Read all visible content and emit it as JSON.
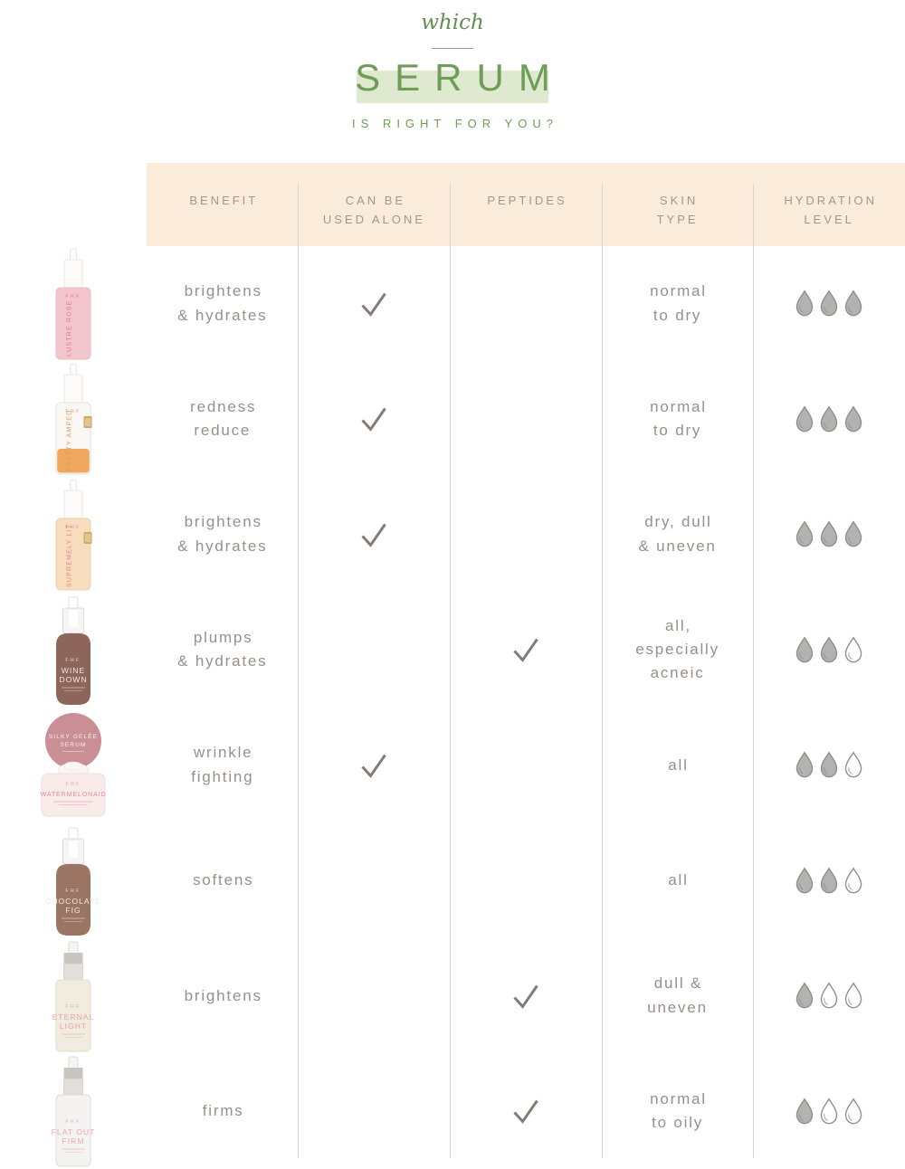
{
  "title": {
    "eyebrow": "which",
    "main": "SERUM",
    "subtitle": "IS RIGHT FOR YOU?"
  },
  "palette": {
    "green": "#6f9d58",
    "green_dark": "#60904e",
    "band_green": "#dfe9cf",
    "header_bg": "#fbebdb",
    "header_text": "#a1968f",
    "body_text": "#9a8f88",
    "check": "#857b76",
    "drop_fill": "#b4b2b1",
    "drop_stroke": "#8f8d8c",
    "divider": "#d9d4d1"
  },
  "columns": [
    "BENEFIT",
    "CAN BE\nUSED ALONE",
    "PEPTIDES",
    "SKIN\nTYPE",
    "HYDRATION\nLEVEL"
  ],
  "hydration_max": 3,
  "chart_data": {
    "type": "table",
    "title": "which SERUM is right for you?",
    "columns": [
      "BENEFIT",
      "CAN BE USED ALONE",
      "PEPTIDES",
      "SKIN TYPE",
      "HYDRATION LEVEL (of 3)"
    ],
    "rows": [
      {
        "product": "LUSTRE ROSE",
        "benefit": "brightens & hydrates",
        "can_be_used_alone": true,
        "peptides": false,
        "skin_type": "normal to dry",
        "hydration_level": 3
      },
      {
        "product": "PRETTY AMPED",
        "benefit": "redness reduce",
        "can_be_used_alone": true,
        "peptides": false,
        "skin_type": "normal to dry",
        "hydration_level": 3
      },
      {
        "product": "SUPREMELY LIT",
        "benefit": "brightens & hydrates",
        "can_be_used_alone": true,
        "peptides": false,
        "skin_type": "dry, dull & uneven",
        "hydration_level": 3
      },
      {
        "product": "WINE DOWN",
        "benefit": "plumps & hydrates",
        "can_be_used_alone": false,
        "peptides": true,
        "skin_type": "all, especially acneic",
        "hydration_level": 2
      },
      {
        "product": "WATERMELONAID",
        "benefit": "wrinkle fighting",
        "can_be_used_alone": true,
        "peptides": false,
        "skin_type": "all",
        "hydration_level": 2
      },
      {
        "product": "CHOCOLATE FIG",
        "benefit": "softens",
        "can_be_used_alone": false,
        "peptides": false,
        "skin_type": "all",
        "hydration_level": 2
      },
      {
        "product": "ETERNAL LIGHT",
        "benefit": "brightens",
        "can_be_used_alone": false,
        "peptides": true,
        "skin_type": "dull & uneven",
        "hydration_level": 1
      },
      {
        "product": "FLAT OUT FIRM",
        "benefit": "firms",
        "can_be_used_alone": false,
        "peptides": true,
        "skin_type": "normal to oily",
        "hydration_level": 1
      }
    ]
  },
  "rows": [
    {
      "product": {
        "name": "LUSTRE ROSE",
        "brand": "FHF",
        "kind": "bottle",
        "cap": "white",
        "body": "#f3c6ce",
        "bodyStroke": "#ecb8c2",
        "label_color": "#e0708e",
        "label_vertical": true
      },
      "benefit": "brightens\n& hydrates",
      "can_be_used_alone": true,
      "peptides": false,
      "skin_type": "normal\nto dry",
      "hydration": 3
    },
    {
      "product": {
        "name": "PRETTY AMPED",
        "brand": "FHF",
        "kind": "bottle",
        "cap": "white",
        "body": "#faf7f4",
        "bodyStroke": "#e7e0da",
        "liquid": "#f0a85e",
        "badge": true,
        "label_color": "#d89a54",
        "label_vertical": true
      },
      "benefit": "redness\nreduce",
      "can_be_used_alone": true,
      "peptides": false,
      "skin_type": "normal\nto dry",
      "hydration": 3
    },
    {
      "product": {
        "name": "SUPREMELY LIT",
        "brand": "FHF",
        "kind": "bottle",
        "cap": "white",
        "body": "#f7dcbd",
        "bodyStroke": "#eccfae",
        "badge": true,
        "label_color": "#e2808f",
        "label_vertical": true
      },
      "benefit": "brightens\n& hydrates",
      "can_be_used_alone": true,
      "peptides": false,
      "skin_type": "dry, dull\n& uneven",
      "hydration": 3
    },
    {
      "product": {
        "name": "WINE DOWN",
        "brand": "FHF",
        "kind": "bottle",
        "cap": "clear",
        "body": "#8d655b",
        "round": true,
        "label_color": "#f2e7e2",
        "label_lines": [
          "WINE",
          "DOWN"
        ],
        "label_vertical": false
      },
      "benefit": "plumps\n& hydrates",
      "can_be_used_alone": false,
      "peptides": true,
      "skin_type": "all,\nespecially\nacneic",
      "hydration": 2
    },
    {
      "product": {
        "name": "WATERMELONAID",
        "brand": "FHF",
        "kind": "jar",
        "disc_lines": [
          "SILKY GELÉE",
          "SERUM"
        ],
        "disc_color": "#c98f94",
        "body": "#f9ebea",
        "bodyStroke": "#eedcdb",
        "label_color": "#e18f9b"
      },
      "benefit": "wrinkle\nfighting",
      "can_be_used_alone": true,
      "peptides": false,
      "skin_type": "all",
      "hydration": 2
    },
    {
      "product": {
        "name": "CHOCOLATE FIG",
        "brand": "FHF",
        "kind": "bottle",
        "cap": "clear",
        "body": "#9b7464",
        "round": true,
        "label_color": "#f2e9e4",
        "label_lines": [
          "CHOCOLATE",
          "FIG"
        ],
        "label_vertical": false
      },
      "benefit": "softens",
      "can_be_used_alone": false,
      "peptides": false,
      "skin_type": "all",
      "hydration": 2
    },
    {
      "product": {
        "name": "ETERNAL LIGHT",
        "brand": "FHF",
        "kind": "bottle",
        "cap": "silver",
        "body": "#f0ecdf",
        "bodyStroke": "#e2dcca",
        "label_color": "#e79fab",
        "label_lines": [
          "ETERNAL",
          "LIGHT"
        ],
        "label_vertical": false
      },
      "benefit": "brightens",
      "can_be_used_alone": false,
      "peptides": true,
      "skin_type": "dull &\nuneven",
      "hydration": 1
    },
    {
      "product": {
        "name": "FLAT OUT FIRM",
        "brand": "FHF",
        "kind": "bottle",
        "cap": "silver",
        "body": "#f5f3f1",
        "bodyStroke": "#dfdbd8",
        "label_color": "#e8a7ae",
        "label_lines": [
          "FLAT OUT",
          "FIRM"
        ],
        "label_vertical": false
      },
      "benefit": "firms",
      "can_be_used_alone": false,
      "peptides": true,
      "skin_type": "normal\nto oily",
      "hydration": 1
    }
  ]
}
